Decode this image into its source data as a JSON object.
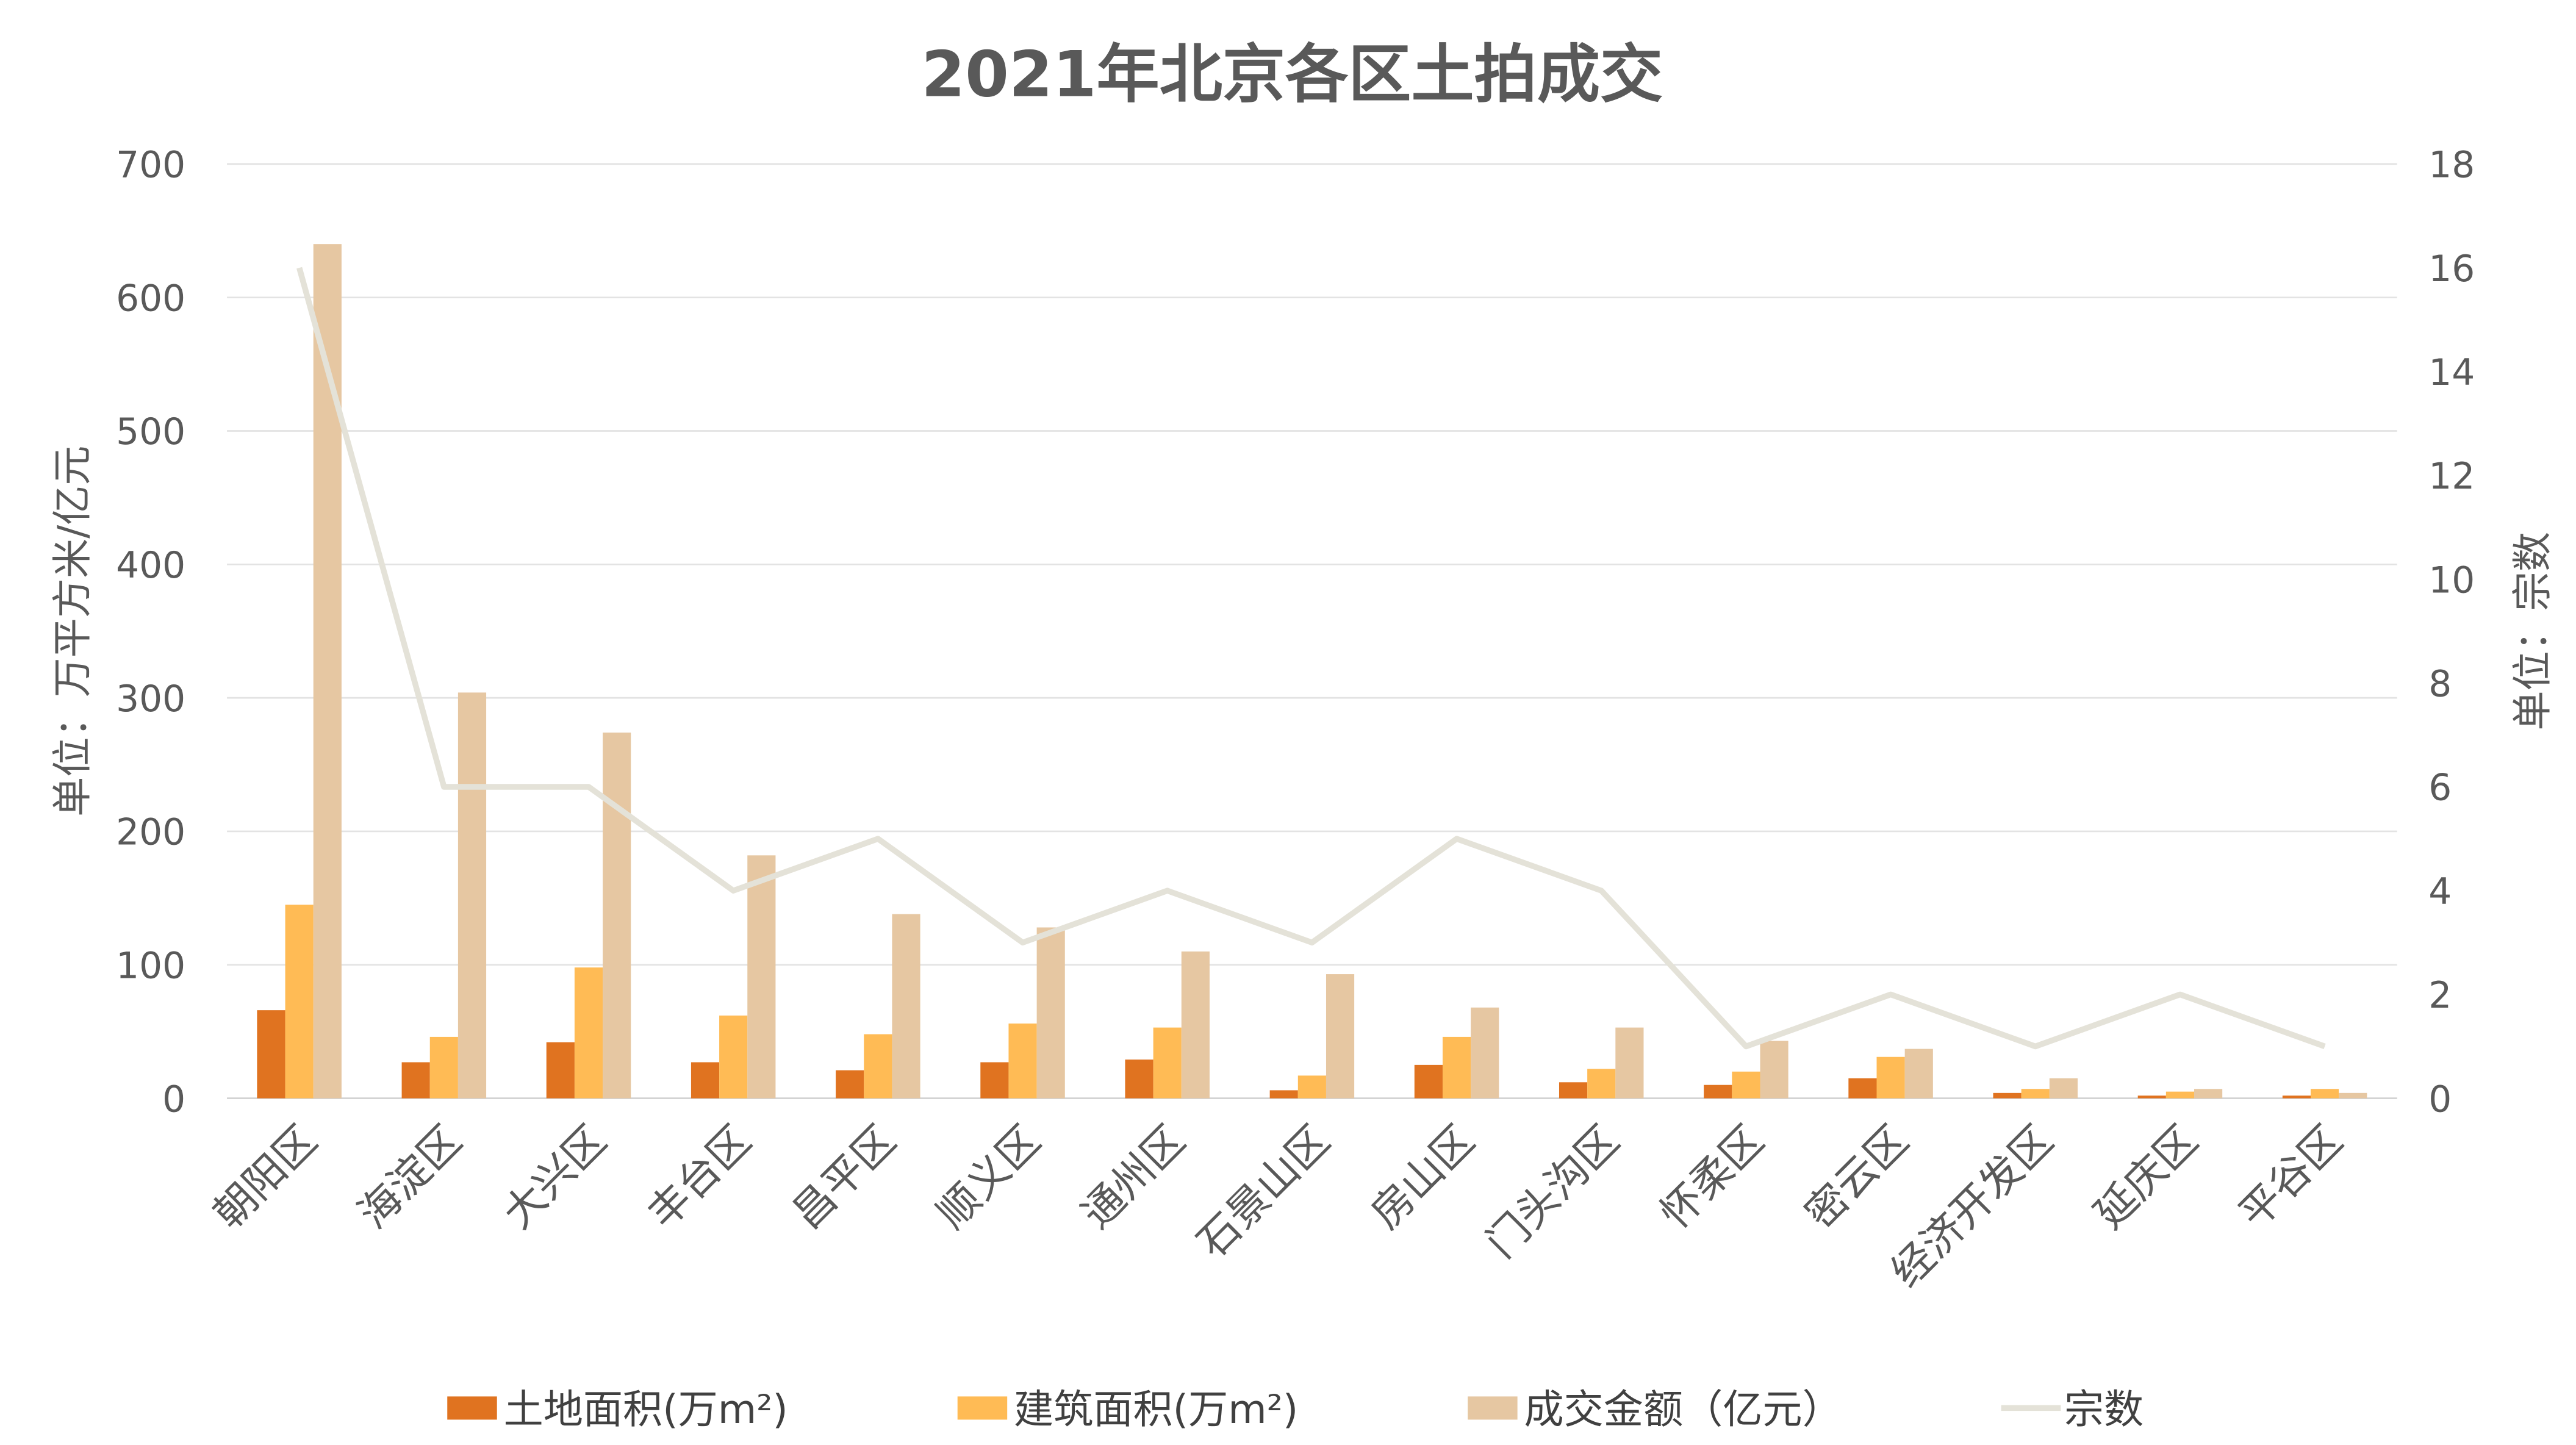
{
  "chart_data": {
    "type": "bar",
    "title": "2021年北京各区土拍成交",
    "ylabel": "单位：万平方米/亿元",
    "y2label": "单位：宗数",
    "ylim": [
      0,
      700
    ],
    "y2lim": [
      0,
      18
    ],
    "yticks": [
      0,
      100,
      200,
      300,
      400,
      500,
      600,
      700
    ],
    "y2ticks": [
      0,
      2,
      4,
      6,
      8,
      10,
      12,
      14,
      16,
      18
    ],
    "grid": true,
    "legend_position": "bottom",
    "categories": [
      "朝阳区",
      "海淀区",
      "大兴区",
      "丰台区",
      "昌平区",
      "顺义区",
      "通州区",
      "石景山区",
      "房山区",
      "门头沟区",
      "怀柔区",
      "密云区",
      "经济开发区",
      "延庆区",
      "平谷区"
    ],
    "series": [
      {
        "name": "土地面积(万m²)",
        "type": "bar",
        "axis": "left",
        "color": "#E07320",
        "values": [
          66,
          27,
          42,
          27,
          21,
          27,
          29,
          6,
          25,
          12,
          10,
          15,
          4,
          2,
          2
        ]
      },
      {
        "name": "建筑面积(万m²)",
        "type": "bar",
        "axis": "left",
        "color": "#FFBB55",
        "values": [
          145,
          46,
          98,
          62,
          48,
          56,
          53,
          17,
          46,
          22,
          20,
          31,
          7,
          5,
          7
        ]
      },
      {
        "name": "成交金额（亿元）",
        "type": "bar",
        "axis": "left",
        "color": "#E6C7A2",
        "values": [
          640,
          304,
          274,
          182,
          138,
          128,
          110,
          93,
          68,
          53,
          43,
          37,
          15,
          7,
          4
        ]
      },
      {
        "name": "宗数",
        "type": "line",
        "axis": "right",
        "color": "#E4E2D8",
        "values": [
          16,
          6,
          6,
          4,
          5,
          3,
          4,
          3,
          5,
          4,
          1,
          2,
          1,
          2,
          1
        ]
      }
    ]
  }
}
